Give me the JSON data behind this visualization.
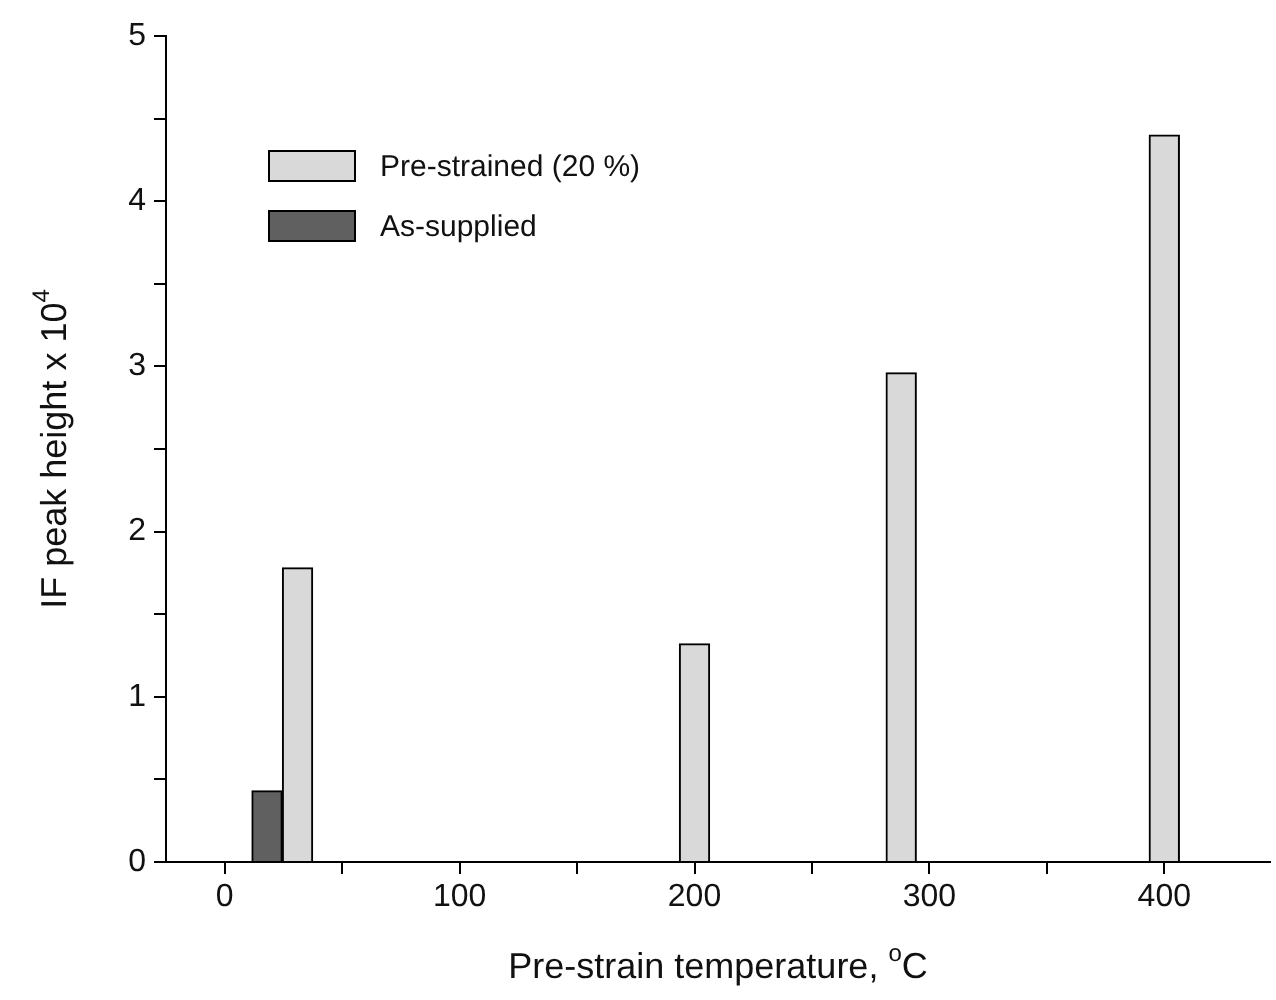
{
  "chart_data": {
    "type": "bar",
    "xlabel": "Pre-strain temperature, $^{o}$C",
    "ylabel": "IF peak height x 10$^{4}$",
    "xlim": [
      -25,
      445
    ],
    "xticks": [
      0,
      {
        "value": 50,
        "label": null
      },
      100,
      {
        "value": 150,
        "label": null
      },
      200,
      {
        "value": 250,
        "label": null
      },
      300,
      {
        "value": 350,
        "label": null
      },
      400
    ],
    "ylim": [
      0,
      5
    ],
    "yticks": [
      0,
      {
        "value": 0.5,
        "label": null
      },
      1,
      {
        "value": 1.5,
        "label": null
      },
      2,
      {
        "value": 2.5,
        "label": null
      },
      3,
      {
        "value": 3.5,
        "label": null
      },
      4,
      {
        "value": 4.5,
        "label": null
      },
      5
    ],
    "series": [
      {
        "name": "Pre-strained (20 %)",
        "color": "#d9d9d9",
        "x": [
          31,
          200,
          288,
          400
        ],
        "values": [
          1.78,
          1.32,
          2.96,
          4.4
        ]
      },
      {
        "name": "As-supplied",
        "color": "#606060",
        "x": [
          18
        ],
        "values": [
          0.43
        ]
      }
    ],
    "grid": false,
    "legend": "top left"
  }
}
